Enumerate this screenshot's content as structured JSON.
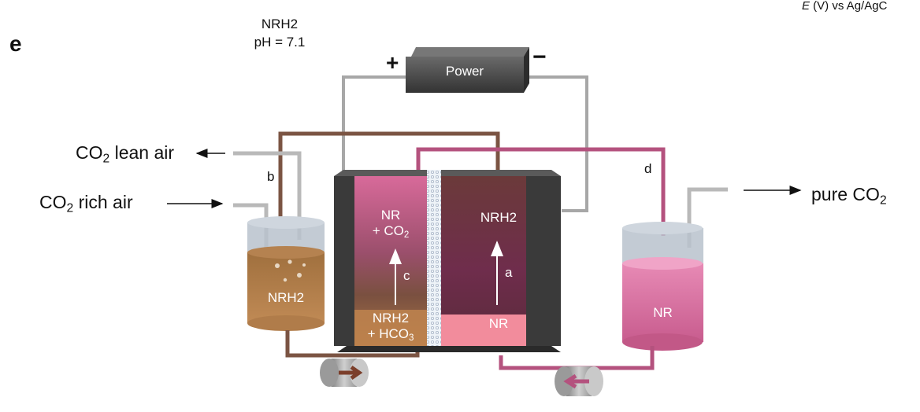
{
  "panel_letter": "e",
  "top_left": {
    "name": "NRH2",
    "ph": "pH = 7.1"
  },
  "top_right_axis": {
    "e": "E",
    "rest": " (V) vs Ag/AgC"
  },
  "power": {
    "label": "Power",
    "plus": "+",
    "minus": "−"
  },
  "gas": {
    "lean_pre": "CO",
    "lean_sub": "2",
    "lean_post": " lean air",
    "rich_pre": "CO",
    "rich_sub": "2",
    "rich_post": " rich air",
    "pure_pre": "pure CO",
    "pure_sub": "2"
  },
  "letters": {
    "b": "b",
    "d": "d",
    "a": "a",
    "c": "c"
  },
  "absorber": {
    "label": "NRH2"
  },
  "desorber": {
    "label": "NR"
  },
  "cell_left": {
    "top_l1": "NR",
    "top_l2_pre": "+ CO",
    "top_l2_sub": "2",
    "bot_l1": "NRH2",
    "bot_l2_pre": "+ HCO",
    "bot_l2_sub": "3"
  },
  "cell_right": {
    "top": "NRH2",
    "bottom": "NR"
  },
  "colors": {
    "wire": "#a7a7a7",
    "brown_tube": "#7b5443",
    "pink_tube": "#b4527e",
    "electrode": "#3a3a3a",
    "power_box": "#4a4a4a"
  }
}
